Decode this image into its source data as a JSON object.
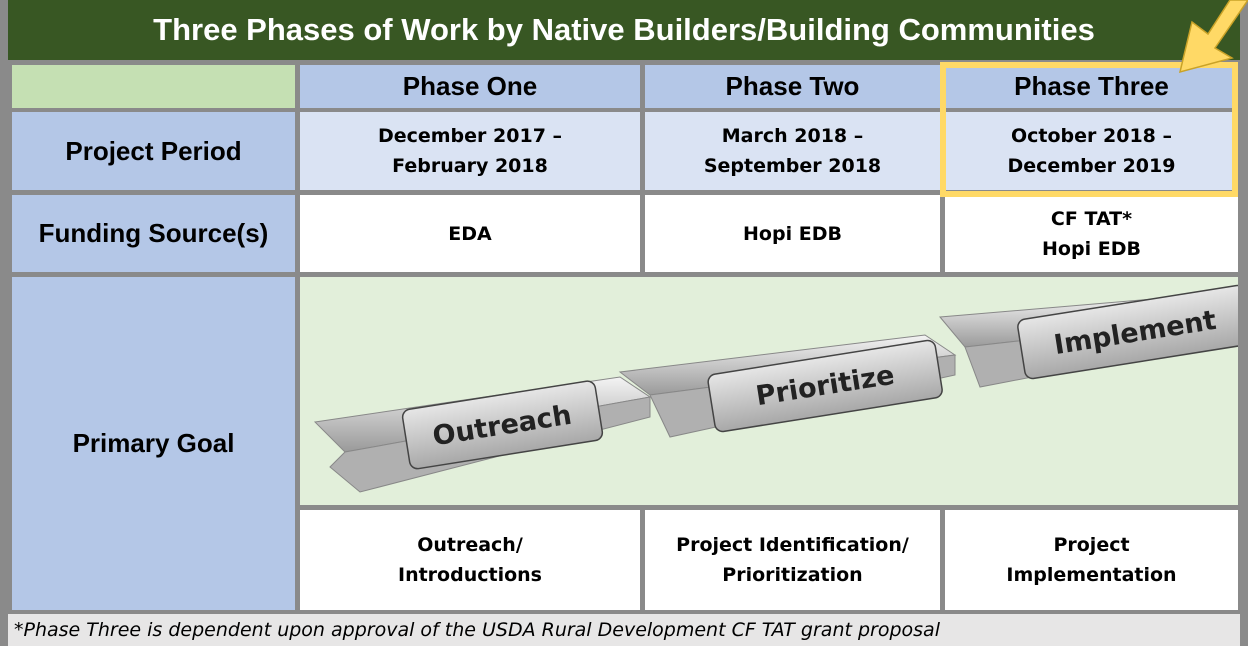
{
  "title": "Three Phases of Work by Native Builders/Building Communities",
  "table": {
    "header": [
      "Phase One",
      "Phase Two",
      "Phase Three"
    ],
    "rows": [
      {
        "label": "Project Period",
        "cells": [
          [
            "December 2017 –",
            "February 2018"
          ],
          [
            "March 2018 –",
            "September 2018"
          ],
          [
            "October 2018 –",
            "December 2019"
          ]
        ]
      },
      {
        "label": "Funding Source(s)",
        "cells": [
          [
            "EDA"
          ],
          [
            "Hopi EDB"
          ],
          [
            "CF TAT*",
            "Hopi EDB"
          ]
        ]
      },
      {
        "label": "Primary Goal",
        "cells": [
          [
            "Outreach/",
            "Introductions"
          ],
          [
            "Project Identification/",
            "Prioritization"
          ],
          [
            "Project",
            "Implementation"
          ]
        ]
      }
    ]
  },
  "diagram": {
    "steps": [
      "Outreach",
      "Prioritize",
      "Implement"
    ]
  },
  "footnote": "*Phase Three is dependent upon approval of the USDA Rural Development CF TAT grant proposal"
}
